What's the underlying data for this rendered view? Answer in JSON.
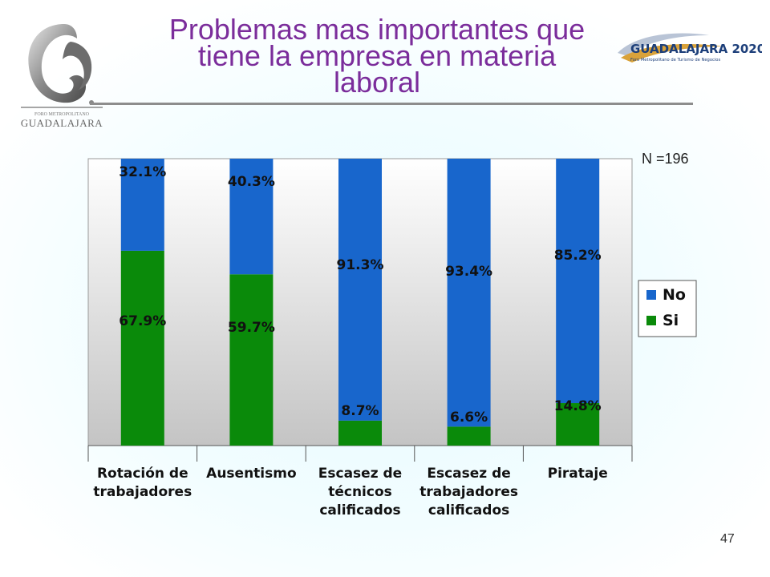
{
  "slide": {
    "title_lines": [
      "Problemas mas importantes que",
      "tiene la empresa en materia",
      "laboral"
    ],
    "sample_size_label": "N =196",
    "page_number": "47"
  },
  "logos": {
    "left_caption": "GUADALAJARA",
    "left_small_text": "FORO METROPOLITANO",
    "right_text": "GUADALAJARA 2020",
    "right_subtext": "Foro Metropolitano de Turismo de Negocios"
  },
  "colors": {
    "title": "#7b2d9b",
    "no_series": "#1866cc",
    "si_series": "#0a8a0a"
  },
  "chart_data": {
    "type": "bar",
    "stacked": true,
    "percent": true,
    "categories": [
      [
        "Rotación de",
        "trabajadores"
      ],
      [
        "Ausentismo"
      ],
      [
        "Escasez de",
        "técnicos",
        "calificados"
      ],
      [
        "Escasez de",
        "trabajadores",
        "calificados"
      ],
      [
        "Pirataje"
      ]
    ],
    "series": [
      {
        "name": "Si",
        "values": [
          67.9,
          59.7,
          8.7,
          6.6,
          14.8
        ],
        "labels": [
          "67.9%",
          "59.7%",
          "8.7%",
          "6.6%",
          "14.8%"
        ]
      },
      {
        "name": "No",
        "values": [
          32.1,
          40.3,
          91.3,
          93.4,
          85.2
        ],
        "labels": [
          "32.1%",
          "40.3%",
          "91.3%",
          "93.4%",
          "85.2%"
        ]
      }
    ],
    "legend_order": [
      "No",
      "Si"
    ],
    "legend_position": "right",
    "ylim": [
      0,
      100
    ]
  }
}
